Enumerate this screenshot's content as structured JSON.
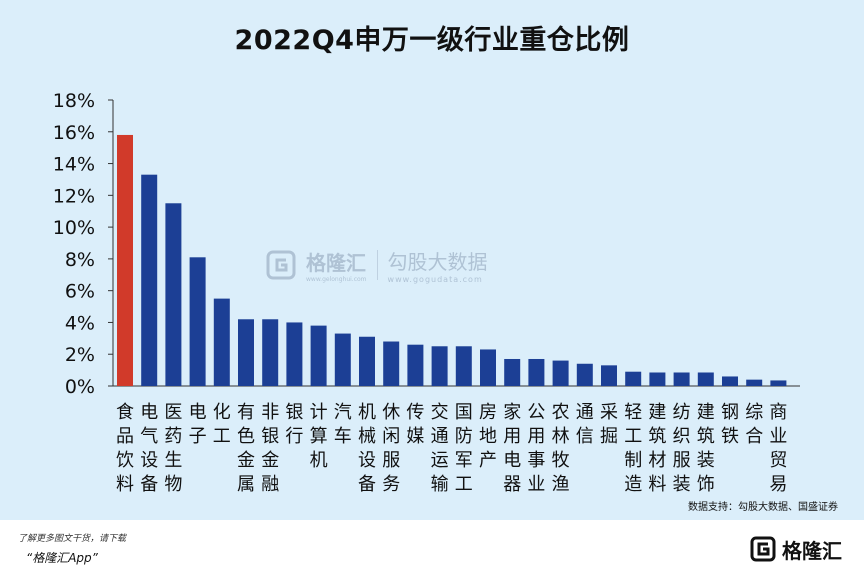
{
  "title": "2022Q4申万一级行业重仓比例",
  "source": "数据支持：勾股大数据、国盛证券",
  "footer": {
    "line1": "了解更多图文干货，请下载",
    "line2": "“格隆汇App”"
  },
  "brand": {
    "name": "格隆汇"
  },
  "watermark": {
    "name": "格隆汇",
    "sub": "www.gelonghui.com",
    "name2": "勾股大数据",
    "url": "www.gogudata.com"
  },
  "colors": {
    "highlight": "#d13a2a",
    "bar": "#1c3f95",
    "background": "#dbeefa"
  },
  "chart_data": {
    "type": "bar",
    "title": "2022Q4申万一级行业重仓比例",
    "ylim": [
      0,
      18
    ],
    "yticks": [
      "0%",
      "2%",
      "4%",
      "6%",
      "8%",
      "10%",
      "12%",
      "14%",
      "16%",
      "18%"
    ],
    "grid": false,
    "categories": [
      "食品饮料",
      "电气设备",
      "医药生物",
      "电子",
      "化工",
      "有色金属",
      "非银金融",
      "银行",
      "计算机",
      "汽车",
      "机械设备",
      "休闲服务",
      "传媒",
      "交通运输",
      "国防军工",
      "房地产",
      "家用电器",
      "公用事业",
      "农林牧渔",
      "通信",
      "采掘",
      "轻工制造",
      "建筑材料",
      "纺织服装",
      "建筑装饰",
      "钢铁",
      "综合",
      "商业贸易"
    ],
    "values": [
      15.8,
      13.3,
      11.5,
      8.1,
      5.5,
      4.2,
      4.2,
      4.0,
      3.8,
      3.3,
      3.1,
      2.8,
      2.6,
      2.5,
      2.5,
      2.3,
      1.7,
      1.7,
      1.6,
      1.4,
      1.3,
      0.9,
      0.85,
      0.85,
      0.85,
      0.6,
      0.4,
      0.35
    ],
    "highlight_index": 0
  }
}
